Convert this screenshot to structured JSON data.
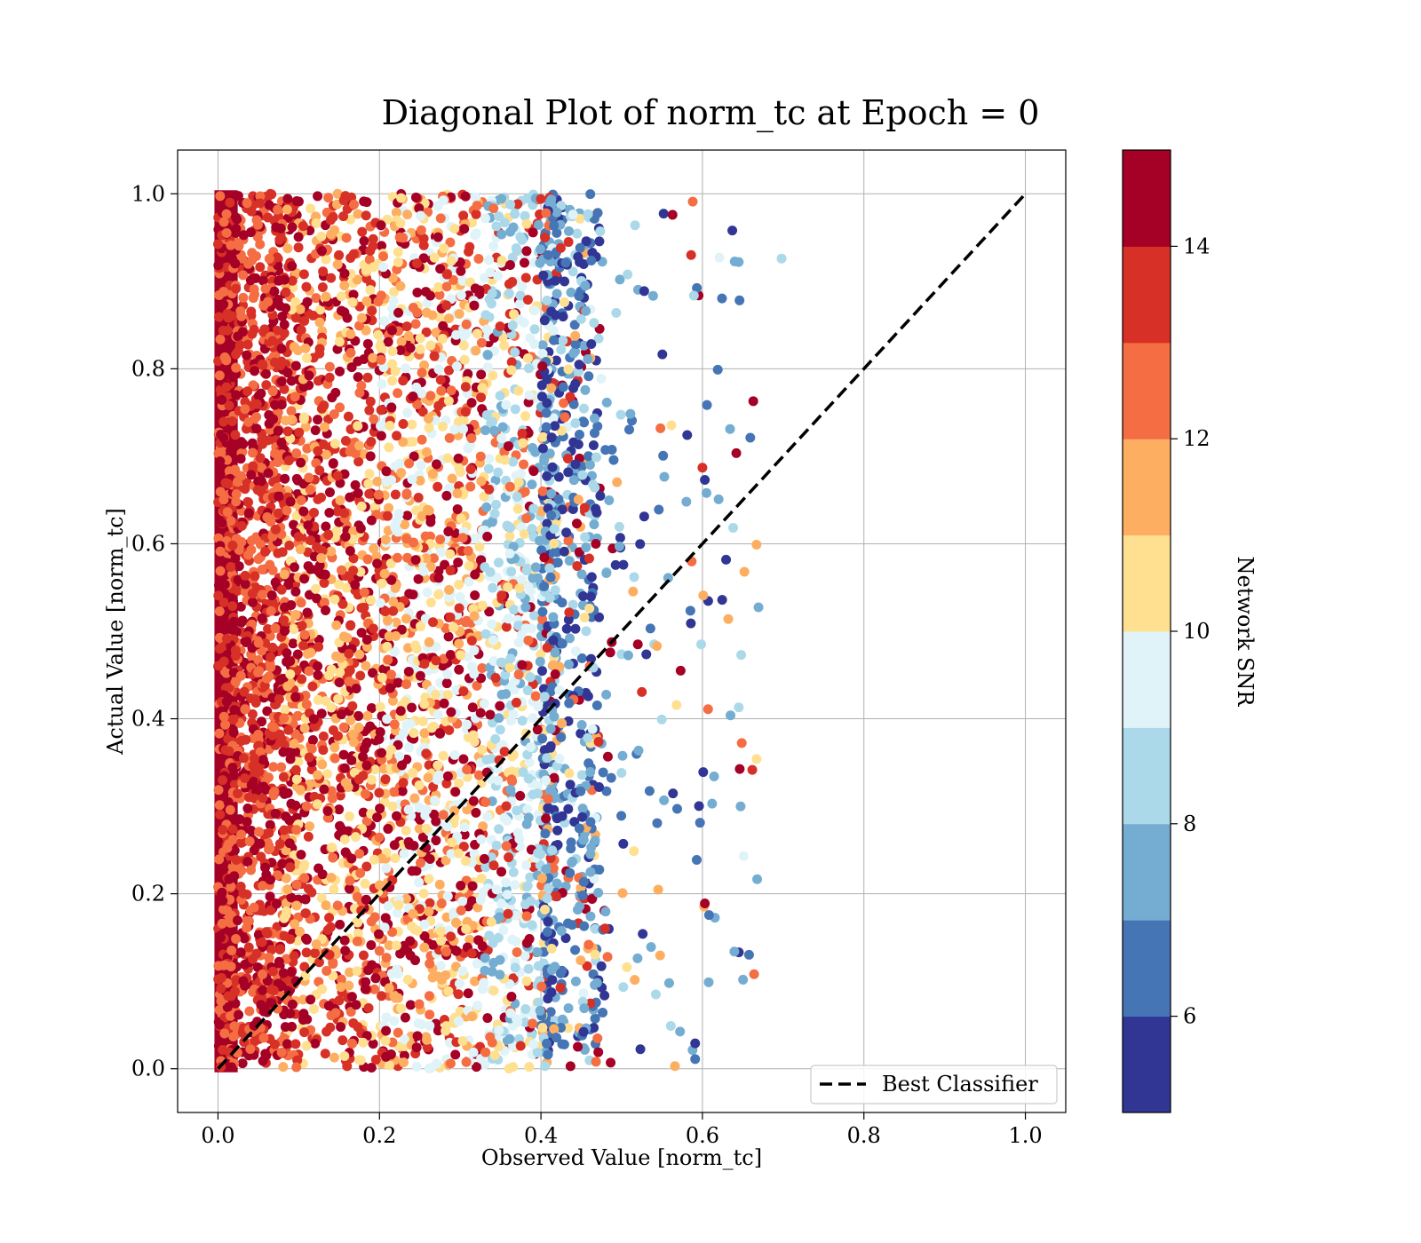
{
  "chart_data": {
    "type": "scatter",
    "title": "Diagonal Plot of norm_tc at Epoch = 0",
    "xlabel": "Observed Value [norm_tc]",
    "ylabel": "Actual Value [norm_tc]",
    "xlim": [
      -0.05,
      1.05
    ],
    "ylim": [
      -0.05,
      1.05
    ],
    "x_ticks": [
      "0.0",
      "0.2",
      "0.4",
      "0.6",
      "0.8",
      "1.0"
    ],
    "y_ticks": [
      "0.0",
      "0.2",
      "0.4",
      "0.6",
      "0.8",
      "1.0"
    ],
    "grid": true,
    "legend": {
      "position": "lower-right",
      "entries": [
        "Best Classifier"
      ]
    },
    "reference_line": {
      "name": "Best Classifier",
      "x": [
        0,
        1
      ],
      "y": [
        0,
        1
      ],
      "style": "dashed",
      "color": "#000000"
    },
    "colorbar": {
      "label": "Network SNR",
      "range": [
        5,
        15
      ],
      "ticks": [
        "6",
        "8",
        "10",
        "12",
        "14"
      ],
      "colors": [
        "#313695",
        "#4575b4",
        "#74add1",
        "#abd9e9",
        "#e0f3f8",
        "#fee090",
        "#fdae61",
        "#f46d43",
        "#d73027",
        "#a50026"
      ]
    },
    "point_regions": [
      {
        "description": "dense band of high-SNR points near x=0",
        "x_range": [
          0.0,
          0.02
        ],
        "y_range": [
          0.0,
          1.0
        ],
        "snr": 15
      },
      {
        "description": "mixed high-SNR scatter",
        "x_range": [
          0.0,
          0.2
        ],
        "y_range": [
          0.0,
          1.0
        ],
        "snr_range": [
          11,
          15
        ]
      },
      {
        "description": "mixed medium-SNR scatter",
        "x_range": [
          0.2,
          0.4
        ],
        "y_range": [
          0.0,
          1.0
        ],
        "snr_range": [
          8,
          15
        ]
      },
      {
        "description": "low-SNR cluster",
        "x_range": [
          0.4,
          0.47
        ],
        "y_range": [
          0.0,
          1.0
        ],
        "snr_range": [
          5,
          9
        ]
      },
      {
        "description": "sparse outliers",
        "x_range": [
          0.47,
          0.7
        ],
        "y_range": [
          0.0,
          1.0
        ],
        "snr_range": [
          5,
          15
        ]
      }
    ],
    "sample_points": [
      {
        "x": 0.637,
        "y": 0.958,
        "snr": 5.5
      },
      {
        "x": 0.698,
        "y": 0.926,
        "snr": 8.5
      },
      {
        "x": 0.645,
        "y": 0.922,
        "snr": 7.5
      },
      {
        "x": 0.621,
        "y": 0.927,
        "snr": 9.5
      },
      {
        "x": 0.588,
        "y": 0.991,
        "snr": 12.5
      },
      {
        "x": 0.563,
        "y": 0.976,
        "snr": 14.5
      },
      {
        "x": 0.586,
        "y": 0.93,
        "snr": 13.5
      },
      {
        "x": 0.619,
        "y": 0.799,
        "snr": 6.5
      },
      {
        "x": 0.663,
        "y": 0.763,
        "snr": 14.5
      },
      {
        "x": 0.6,
        "y": 0.687,
        "snr": 13.5
      },
      {
        "x": 0.603,
        "y": 0.673,
        "snr": 5.5
      },
      {
        "x": 0.605,
        "y": 0.658,
        "snr": 7.5
      },
      {
        "x": 0.667,
        "y": 0.599,
        "snr": 11.5
      },
      {
        "x": 0.652,
        "y": 0.568,
        "snr": 11.5
      },
      {
        "x": 0.632,
        "y": 0.514,
        "snr": 11.5
      },
      {
        "x": 0.601,
        "y": 0.541,
        "snr": 11.5
      },
      {
        "x": 0.648,
        "y": 0.473,
        "snr": 8.5
      },
      {
        "x": 0.645,
        "y": 0.413,
        "snr": 8.5
      },
      {
        "x": 0.667,
        "y": 0.354,
        "snr": 10.5
      },
      {
        "x": 0.612,
        "y": 0.303,
        "snr": 7.5
      },
      {
        "x": 0.601,
        "y": 0.339,
        "snr": 5.5
      },
      {
        "x": 0.651,
        "y": 0.243,
        "snr": 9.5
      },
      {
        "x": 0.603,
        "y": 0.189,
        "snr": 14.5
      },
      {
        "x": 0.664,
        "y": 0.108,
        "snr": 12.5
      },
      {
        "x": 0.591,
        "y": 0.029,
        "snr": 5.5
      },
      {
        "x": 0.591,
        "y": 0.011,
        "snr": 6.5
      },
      {
        "x": 0.566,
        "y": 0.003,
        "snr": 11.5
      },
      {
        "x": 0.573,
        "y": 0.455,
        "snr": 14.5
      },
      {
        "x": 0.607,
        "y": 0.411,
        "snr": 12.5
      },
      {
        "x": 0.52,
        "y": 0.485,
        "snr": 14.5
      },
      {
        "x": 0.468,
        "y": 0.6,
        "snr": 14.5
      },
      {
        "x": 0.548,
        "y": 0.732,
        "snr": 12.5
      }
    ]
  }
}
